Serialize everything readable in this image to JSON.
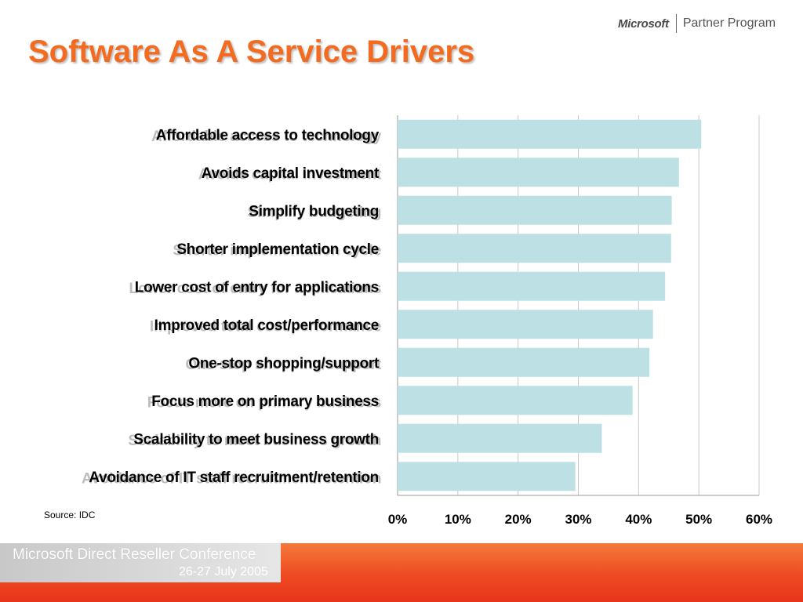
{
  "slide": {
    "title": "Software As A Service Drivers",
    "logo_microsoft": "Microsoft",
    "logo_program": "Partner Program",
    "source": "Source: IDC",
    "footer_line1": "Microsoft Direct Reseller Conference",
    "footer_line2": "26-27 July 2005"
  },
  "colors": {
    "title": "#f26b21",
    "bar": "#bde0e5",
    "grid": "#c8c8c8",
    "footer": "#ee4a22"
  },
  "chart_data": {
    "type": "bar",
    "orientation": "horizontal",
    "title": "",
    "xlabel": "",
    "ylabel": "",
    "categories": [
      "Affordable access to technology",
      "Avoids capital investment",
      "Simplify budgeting",
      "Shorter implementation cycle",
      "Lower cost of entry for applications",
      "Improved total cost/performance",
      "One-stop shopping/support",
      "Focus more on primary business",
      "Scalability to meet business growth",
      "Avoidance of IT staff recruitment/retention"
    ],
    "values": [
      50.4,
      46.7,
      45.5,
      45.4,
      44.4,
      42.4,
      41.8,
      39.0,
      33.9,
      29.5
    ],
    "xlim": [
      0,
      60
    ],
    "ticks": [
      "0%",
      "10%",
      "20%",
      "30%",
      "40%",
      "50%",
      "60%"
    ],
    "tick_values": [
      0,
      10,
      20,
      30,
      40,
      50,
      60
    ],
    "grid": true,
    "legend": "none"
  }
}
